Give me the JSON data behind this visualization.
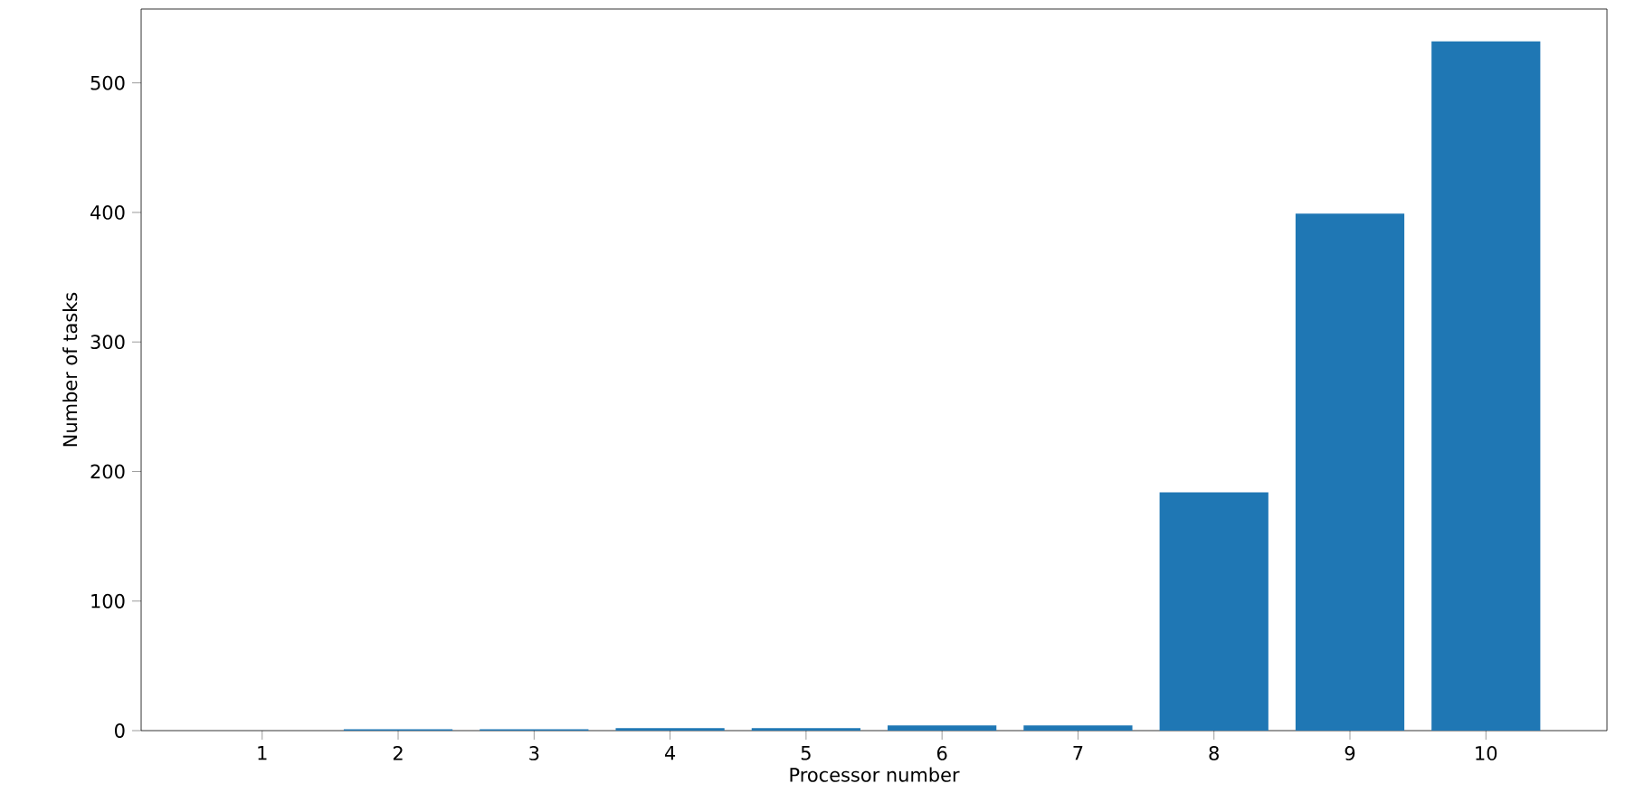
{
  "chart_data": {
    "type": "bar",
    "xlabel": "Processor number",
    "ylabel": "Number of tasks",
    "categories": [
      "1",
      "2",
      "3",
      "4",
      "5",
      "6",
      "7",
      "8",
      "9",
      "10"
    ],
    "values": [
      0,
      1,
      1,
      2,
      2,
      4,
      4,
      184,
      399,
      532
    ],
    "color": "#1f77b4",
    "ylim": [
      0,
      557
    ],
    "yticks": [
      0,
      100,
      200,
      300,
      400,
      500
    ]
  }
}
